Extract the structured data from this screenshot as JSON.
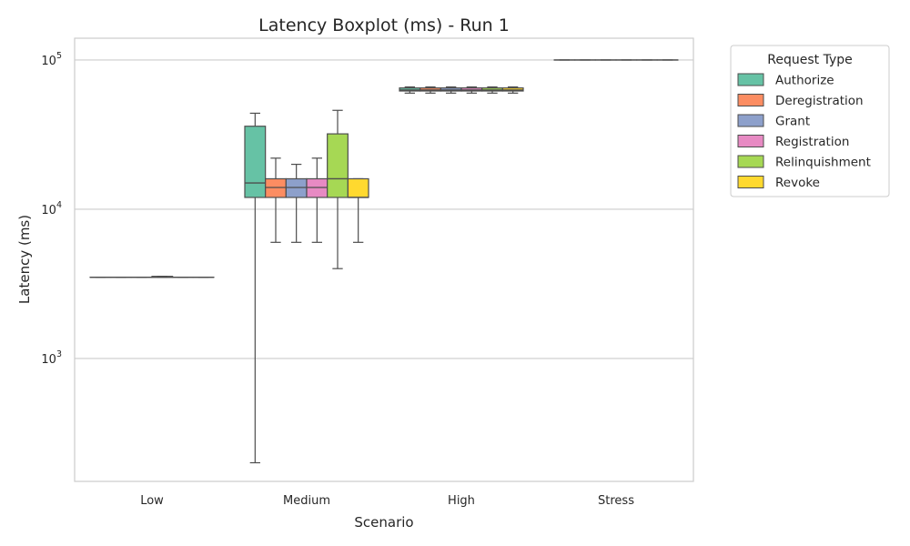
{
  "chart_data": {
    "type": "boxplot",
    "title": "Latency Boxplot (ms) - Run 1",
    "xlabel": "Scenario",
    "ylabel": "Latency (ms)",
    "yscale": "log",
    "ylim": [
      150,
      140000
    ],
    "yticks": [
      {
        "value": 1000,
        "base": "10",
        "exp": "3"
      },
      {
        "value": 10000,
        "base": "10",
        "exp": "4"
      },
      {
        "value": 100000,
        "base": "10",
        "exp": "5"
      }
    ],
    "grid": "horizontal",
    "categories": [
      "Low",
      "Medium",
      "High",
      "Stress"
    ],
    "legend": {
      "title": "Request Type",
      "placement": "outside right"
    },
    "series": [
      {
        "name": "Authorize",
        "color": "#66c2a5",
        "boxes": [
          {
            "min": 3500,
            "q1": 3500,
            "median": 3500,
            "q3": 3500,
            "max": 3500
          },
          {
            "min": 200,
            "q1": 12000,
            "median": 15000,
            "q3": 36000,
            "max": 44000
          },
          {
            "min": 60000,
            "q1": 62000,
            "median": 63000,
            "q3": 65000,
            "max": 66000
          },
          {
            "min": 100000,
            "q1": 100000,
            "median": 100000,
            "q3": 100000,
            "max": 100000
          }
        ]
      },
      {
        "name": "Deregistration",
        "color": "#fc8d62",
        "boxes": [
          {
            "min": 3500,
            "q1": 3500,
            "median": 3500,
            "q3": 3500,
            "max": 3500
          },
          {
            "min": 6000,
            "q1": 12000,
            "median": 14000,
            "q3": 16000,
            "max": 22000
          },
          {
            "min": 60000,
            "q1": 62000,
            "median": 63000,
            "q3": 65000,
            "max": 66000
          },
          {
            "min": 100000,
            "q1": 100000,
            "median": 100000,
            "q3": 100000,
            "max": 100000
          }
        ]
      },
      {
        "name": "Grant",
        "color": "#8da0cb",
        "boxes": [
          {
            "min": 3500,
            "q1": 3500,
            "median": 3500,
            "q3": 3500,
            "max": 3500
          },
          {
            "min": 6000,
            "q1": 12000,
            "median": 14000,
            "q3": 16000,
            "max": 20000
          },
          {
            "min": 60000,
            "q1": 62000,
            "median": 63000,
            "q3": 65000,
            "max": 66000
          },
          {
            "min": 100000,
            "q1": 100000,
            "median": 100000,
            "q3": 100000,
            "max": 100000
          }
        ]
      },
      {
        "name": "Registration",
        "color": "#e78ac3",
        "boxes": [
          {
            "min": 3500,
            "q1": 3500,
            "median": 3500,
            "q3": 3550,
            "max": 3550
          },
          {
            "min": 6000,
            "q1": 12000,
            "median": 14000,
            "q3": 16000,
            "max": 22000
          },
          {
            "min": 60000,
            "q1": 62000,
            "median": 63000,
            "q3": 65000,
            "max": 66000
          },
          {
            "min": 100000,
            "q1": 100000,
            "median": 100000,
            "q3": 100000,
            "max": 100000
          }
        ]
      },
      {
        "name": "Relinquishment",
        "color": "#a6d854",
        "boxes": [
          {
            "min": 3500,
            "q1": 3500,
            "median": 3500,
            "q3": 3500,
            "max": 3500
          },
          {
            "min": 4000,
            "q1": 12000,
            "median": 16000,
            "q3": 32000,
            "max": 46000
          },
          {
            "min": 60000,
            "q1": 62000,
            "median": 63000,
            "q3": 65000,
            "max": 66000
          },
          {
            "min": 100000,
            "q1": 100000,
            "median": 100000,
            "q3": 100000,
            "max": 100000
          }
        ]
      },
      {
        "name": "Revoke",
        "color": "#ffd92f",
        "boxes": [
          {
            "min": 3500,
            "q1": 3500,
            "median": 3500,
            "q3": 3500,
            "max": 3500
          },
          {
            "min": 6000,
            "q1": 12000,
            "median": 12000,
            "q3": 16000,
            "max": 16000
          },
          {
            "min": 60000,
            "q1": 62000,
            "median": 63000,
            "q3": 65000,
            "max": 66000
          },
          {
            "min": 100000,
            "q1": 100000,
            "median": 100000,
            "q3": 100000,
            "max": 100000
          }
        ]
      }
    ]
  }
}
